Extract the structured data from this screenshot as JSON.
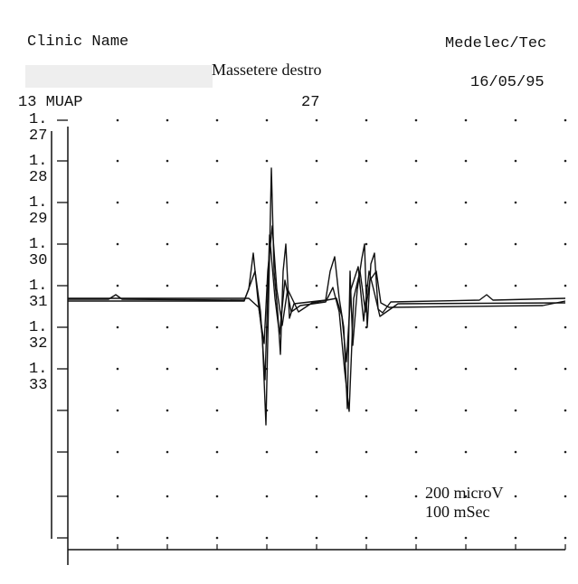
{
  "header": {
    "clinic": "Clinic Name",
    "device": "Medelec/Tec",
    "title": "Massetere destro",
    "date": "16/05/95"
  },
  "info": {
    "left": "13 MUAP",
    "right": "27"
  },
  "axis": {
    "labels": [
      {
        "line1": "1.",
        "line2": "27"
      },
      {
        "line1": "1.",
        "line2": "28"
      },
      {
        "line1": "1.",
        "line2": "29"
      },
      {
        "line1": "1.",
        "line2": "30"
      },
      {
        "line1": "1.",
        "line2": "31"
      },
      {
        "line1": "1.",
        "line2": "32"
      },
      {
        "line1": "1.",
        "line2": "33"
      }
    ]
  },
  "annotations": [
    "200 microV",
    "100 mSec"
  ]
}
